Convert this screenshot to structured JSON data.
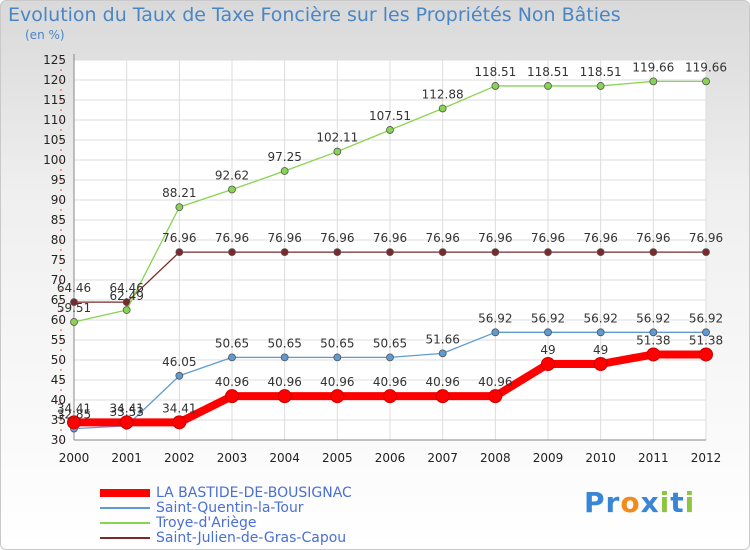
{
  "chart_data": {
    "type": "line",
    "title": "Evolution du Taux de Taxe Foncière sur les Propriétés Non Bâties",
    "ylabel": "(en %)",
    "x": [
      2000,
      2001,
      2002,
      2003,
      2004,
      2005,
      2006,
      2007,
      2008,
      2009,
      2010,
      2011,
      2012
    ],
    "ylim": [
      30,
      125
    ],
    "yticks": [
      30,
      35,
      40,
      45,
      50,
      55,
      60,
      65,
      70,
      75,
      80,
      85,
      90,
      95,
      100,
      105,
      110,
      115,
      120,
      125
    ],
    "grid": true,
    "legend_position": "bottom-left",
    "series": [
      {
        "name": "LA BASTIDE-DE-BOUSIGNAC",
        "color": "#ff0000",
        "values": [
          34.41,
          34.41,
          34.41,
          40.96,
          40.96,
          40.96,
          40.96,
          40.96,
          40.96,
          49,
          49,
          51.38,
          51.38
        ],
        "labels": [
          "34.41",
          "34.41",
          "34.41",
          "40.96",
          "40.96",
          "40.96",
          "40.96",
          "40.96",
          "40.96",
          "49",
          "49",
          "51.38",
          "51.38"
        ]
      },
      {
        "name": "Saint-Quentin-la-Tour",
        "color": "#5f9bd3",
        "values": [
          32.85,
          33.53,
          46.05,
          50.65,
          50.65,
          50.65,
          50.65,
          51.66,
          56.92,
          56.92,
          56.92,
          56.92,
          56.92
        ],
        "labels": [
          "32.85",
          "33.53",
          "46.05",
          "50.65",
          "50.65",
          "50.65",
          "50.65",
          "51.66",
          "56.92",
          "56.92",
          "56.92",
          "56.92",
          "56.92"
        ]
      },
      {
        "name": "Troye-d'Ariège",
        "color": "#88d352",
        "values": [
          59.51,
          62.49,
          88.21,
          92.62,
          97.25,
          102.11,
          107.51,
          112.88,
          118.51,
          118.51,
          118.51,
          119.66,
          119.66
        ],
        "labels": [
          "59.51",
          "62.49",
          "88.21",
          "92.62",
          "97.25",
          "102.11",
          "107.51",
          "112.88",
          "118.51",
          "118.51",
          "118.51",
          "119.66",
          "119.66"
        ]
      },
      {
        "name": "Saint-Julien-de-Gras-Capou",
        "color": "#7a2a2a",
        "values": [
          64.46,
          64.46,
          76.96,
          76.96,
          76.96,
          76.96,
          76.96,
          76.96,
          76.96,
          76.96,
          76.96,
          76.96,
          76.96
        ],
        "labels": [
          "64.46",
          "64.46",
          "76.96",
          "76.96",
          "76.96",
          "76.96",
          "76.96",
          "76.96",
          "76.96",
          "76.96",
          "76.96",
          "76.96",
          "76.96"
        ]
      }
    ]
  },
  "brand": {
    "text": "Proxiti",
    "letters": [
      {
        "ch": "P",
        "color": "#3a86d6"
      },
      {
        "ch": "r",
        "color": "#3a86d6"
      },
      {
        "ch": "o",
        "color": "#f28a1e"
      },
      {
        "ch": "x",
        "color": "#3a86d6"
      },
      {
        "ch": "i",
        "color": "#8cc63f"
      },
      {
        "ch": "t",
        "color": "#3a86d6"
      },
      {
        "ch": "i",
        "color": "#8cc63f"
      }
    ]
  }
}
